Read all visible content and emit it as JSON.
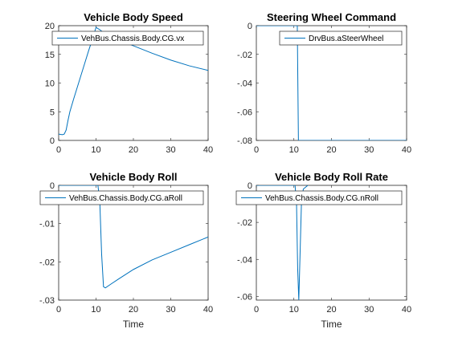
{
  "chart_data": [
    {
      "type": "line",
      "title": "Vehicle Body Speed",
      "xlabel": "",
      "ylabel": "",
      "xlim": [
        0,
        40
      ],
      "ylim": [
        0,
        20
      ],
      "xticks": [
        0,
        10,
        20,
        30,
        40
      ],
      "yticks": [
        0,
        5,
        10,
        15,
        20
      ],
      "legend": "top-right",
      "series": [
        {
          "name": "VehBus.Chassis.Body.CG.vx",
          "color": "#0072BD",
          "x": [
            0,
            1,
            1.5,
            2,
            2.5,
            3,
            4,
            5,
            6,
            7,
            8,
            9,
            10,
            11,
            12,
            15,
            20,
            25,
            30,
            35,
            40
          ],
          "y": [
            1.1,
            1.0,
            1.1,
            1.8,
            3.5,
            5.0,
            7.2,
            9.3,
            11.4,
            13.5,
            15.6,
            17.6,
            19.7,
            19.3,
            18.8,
            17.8,
            16.5,
            15.2,
            14.0,
            13.0,
            12.2
          ]
        }
      ]
    },
    {
      "type": "line",
      "title": "Steering Wheel Command",
      "xlabel": "",
      "ylabel": "",
      "xlim": [
        0,
        40
      ],
      "ylim": [
        -0.08,
        0
      ],
      "xticks": [
        0,
        10,
        20,
        30,
        40
      ],
      "yticks": [
        0,
        -0.02,
        -0.04,
        -0.06,
        -0.08
      ],
      "legend": "top-right",
      "series": [
        {
          "name": "DrvBus.aSteerWheel",
          "color": "#0072BD",
          "x": [
            0,
            10.9,
            11.2,
            40
          ],
          "y": [
            0,
            0,
            -0.08,
            -0.08
          ]
        }
      ]
    },
    {
      "type": "line",
      "title": "Vehicle Body Roll",
      "xlabel": "Time",
      "ylabel": "",
      "xlim": [
        0,
        40
      ],
      "ylim": [
        -0.03,
        0
      ],
      "xticks": [
        0,
        10,
        20,
        30,
        40
      ],
      "yticks": [
        0,
        -0.01,
        -0.02,
        -0.03
      ],
      "legend": "top-right",
      "series": [
        {
          "name": "VehBus.Chassis.Body.CG.aRoll",
          "color": "#0072BD",
          "x": [
            0,
            10.5,
            11.0,
            11.5,
            12.0,
            12.5,
            14,
            16,
            20,
            25,
            30,
            35,
            40
          ],
          "y": [
            0,
            0,
            -0.004,
            -0.018,
            -0.0265,
            -0.0268,
            -0.0258,
            -0.0245,
            -0.022,
            -0.0195,
            -0.0175,
            -0.0155,
            -0.0135
          ]
        }
      ]
    },
    {
      "type": "line",
      "title": "Vehicle Body Roll Rate",
      "xlabel": "Time",
      "ylabel": "",
      "xlim": [
        0,
        40
      ],
      "ylim": [
        -0.062,
        0
      ],
      "xticks": [
        0,
        10,
        20,
        30,
        40
      ],
      "yticks": [
        0,
        -0.02,
        -0.04,
        -0.06
      ],
      "legend": "top-right",
      "series": [
        {
          "name": "VehBus.Chassis.Body.CG.nRoll",
          "color": "#0072BD",
          "x": [
            0,
            10.3,
            10.7,
            11.0,
            11.3,
            11.6,
            12.0,
            12.5,
            14,
            20,
            30,
            40
          ],
          "y": [
            0,
            0,
            -0.01,
            -0.045,
            -0.062,
            -0.04,
            -0.01,
            -0.002,
            0.0005,
            0.0004,
            0.0003,
            0.0002
          ]
        }
      ]
    }
  ]
}
